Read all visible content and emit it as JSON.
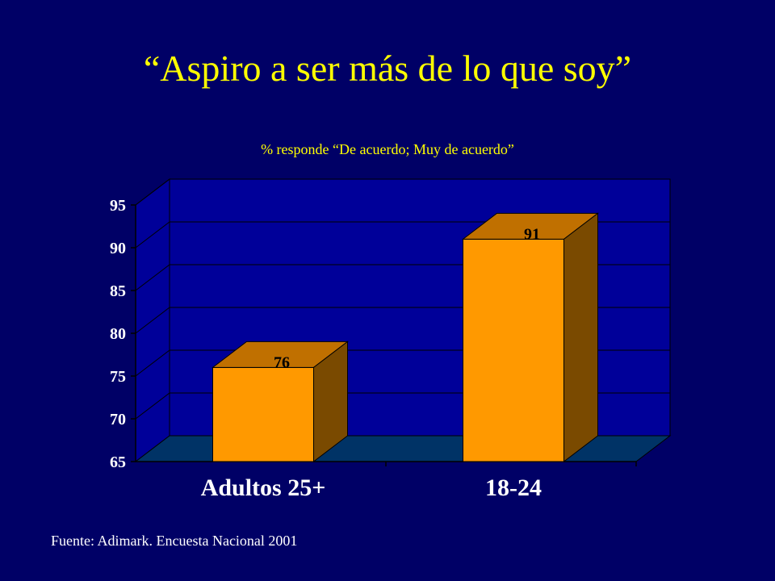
{
  "title": "“Aspiro a ser más de lo que soy”",
  "subtitle": "% responde “De acuerdo; Muy de acuerdo”",
  "source": "Fuente: Adimark. Encuesta Nacional 2001",
  "colors": {
    "background": "#000066",
    "title": "#FFFF00",
    "bar_front": "#FF9900",
    "bar_top": "#C07000",
    "bar_side": "#7A4A00",
    "floor": "#003366",
    "wall": "#000099"
  },
  "chart_data": {
    "type": "bar",
    "categories": [
      "Adultos 25+",
      "18-24"
    ],
    "values": [
      76,
      91
    ],
    "data_labels": [
      "76",
      "91"
    ],
    "ylim": [
      65,
      95
    ],
    "yticks": [
      "65",
      "70",
      "75",
      "80",
      "85",
      "90",
      "95"
    ],
    "xlabel": "",
    "ylabel": "",
    "grid": true,
    "three_d": true
  }
}
